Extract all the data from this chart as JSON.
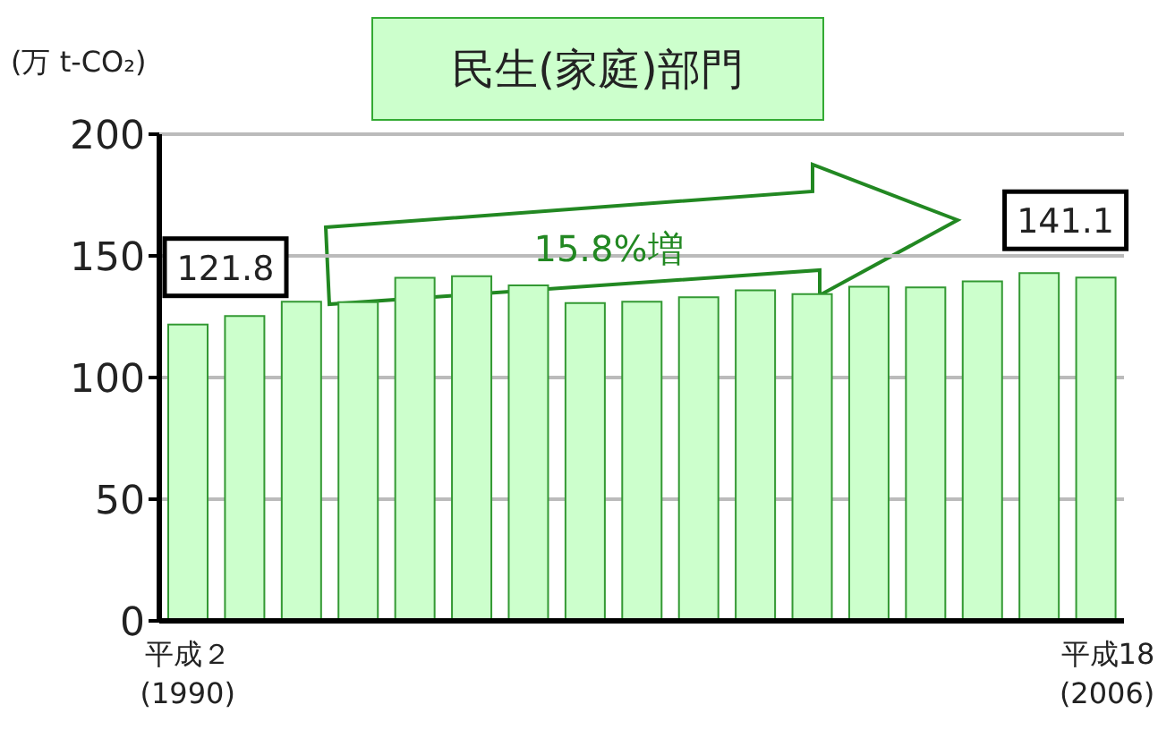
{
  "chart_data": {
    "type": "bar",
    "title": "民生(家庭)部門",
    "ylabel": "(万 t-CO₂)",
    "categories": [
      "平成２\n(1990)",
      null,
      null,
      null,
      null,
      null,
      null,
      null,
      null,
      null,
      null,
      null,
      null,
      null,
      null,
      null,
      "平成18\n(2006)"
    ],
    "values": [
      121.8,
      125.3,
      131.2,
      131.0,
      141.0,
      141.6,
      137.9,
      130.6,
      131.2,
      133.0,
      135.8,
      134.3,
      137.3,
      137.0,
      139.5,
      142.9,
      141.1
    ],
    "value_labels": [
      "121.8",
      null,
      null,
      null,
      null,
      null,
      null,
      null,
      null,
      null,
      null,
      null,
      null,
      null,
      null,
      null,
      "141.1"
    ],
    "color": "#ccffcc",
    "annotations": [
      "15.8%増"
    ],
    "ylim": [
      0,
      200
    ],
    "yticks": [
      0,
      50,
      100,
      150,
      200
    ],
    "grid": "y"
  }
}
